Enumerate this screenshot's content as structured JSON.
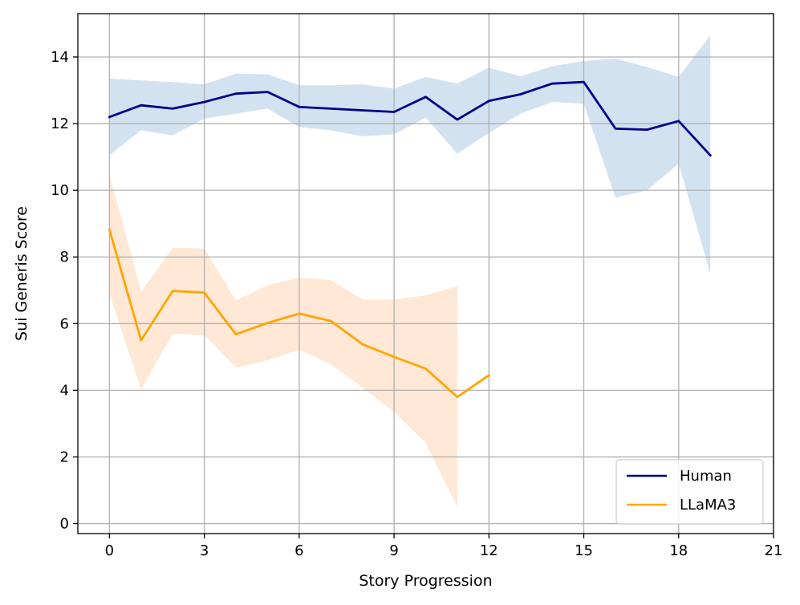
{
  "chart_data": {
    "type": "line",
    "xlabel": "Story Progression",
    "ylabel": "Sui Generis Score",
    "xlim": [
      -1,
      21
    ],
    "ylim": [
      -0.3,
      15.3
    ],
    "xticks": [
      0,
      3,
      6,
      9,
      12,
      15,
      18,
      21
    ],
    "yticks": [
      0,
      2,
      4,
      6,
      8,
      10,
      12,
      14
    ],
    "grid": true,
    "legend_position": "lower-right",
    "series": [
      {
        "name": "Human",
        "color": "#00008b",
        "band_color": "#aecbe3",
        "x": [
          0,
          1,
          2,
          3,
          4,
          5,
          6,
          7,
          8,
          9,
          10,
          11,
          12,
          13,
          14,
          15,
          16,
          17,
          18,
          19
        ],
        "values": [
          12.2,
          12.55,
          12.45,
          12.65,
          12.9,
          12.95,
          12.5,
          12.45,
          12.4,
          12.35,
          12.8,
          12.12,
          12.68,
          12.88,
          13.2,
          13.25,
          11.85,
          11.82,
          12.08,
          11.05
        ],
        "lower": [
          11.05,
          11.8,
          11.65,
          12.15,
          12.3,
          12.45,
          11.9,
          11.8,
          11.62,
          11.68,
          12.18,
          11.1,
          11.72,
          12.3,
          12.65,
          12.6,
          9.78,
          10.0,
          10.8,
          7.5
        ],
        "upper": [
          13.35,
          13.3,
          13.25,
          13.18,
          13.5,
          13.48,
          13.15,
          13.15,
          13.18,
          13.05,
          13.4,
          13.2,
          13.68,
          13.42,
          13.72,
          13.88,
          13.95,
          13.7,
          13.4,
          14.65
        ]
      },
      {
        "name": "LLaMA3",
        "color": "#ffa500",
        "band_color": "#ffd6b3",
        "x": [
          0,
          1,
          2,
          3,
          4,
          5,
          6,
          7,
          8,
          9,
          10,
          11,
          12
        ],
        "values": [
          8.82,
          5.5,
          6.98,
          6.93,
          5.68,
          6.02,
          6.3,
          6.08,
          5.38,
          5.0,
          4.65,
          3.8,
          4.45
        ],
        "lower": [
          6.9,
          4.02,
          5.7,
          5.65,
          4.68,
          4.9,
          5.22,
          4.78,
          4.08,
          3.35,
          2.42,
          0.5,
          null
        ],
        "upper": [
          10.5,
          6.95,
          8.28,
          8.25,
          6.7,
          7.15,
          7.38,
          7.3,
          6.72,
          6.72,
          6.85,
          7.12,
          null
        ]
      }
    ]
  }
}
